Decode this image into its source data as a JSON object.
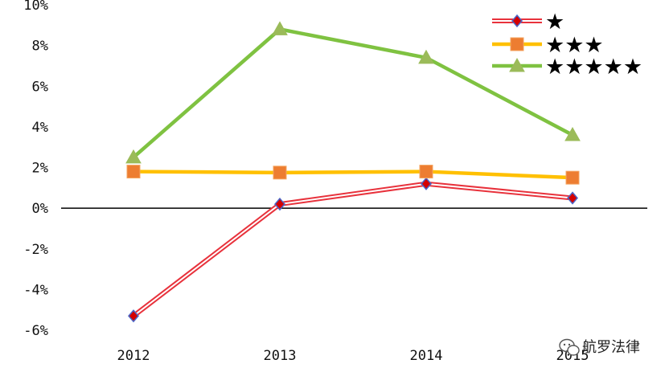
{
  "chart_data": {
    "type": "line",
    "categories": [
      "2012",
      "2013",
      "2014",
      "2015"
    ],
    "ylim": [
      -6,
      10
    ],
    "yticks": [
      10,
      8,
      6,
      4,
      2,
      0,
      -2,
      -4,
      -6
    ],
    "ytick_labels": [
      "10%",
      "8%",
      "6%",
      "4%",
      "2%",
      "0%",
      "-2%",
      "-4%",
      "-6%"
    ],
    "grid": false,
    "legend_position": "top-right",
    "series": [
      {
        "name": "★",
        "color": "#e8323c",
        "marker": "diamond",
        "marker_fill": "#d40000",
        "marker_stroke": "#4a66c8",
        "values": [
          -5.3,
          0.2,
          1.2,
          0.5
        ]
      },
      {
        "name": "★★★",
        "color": "#ffc000",
        "marker": "square",
        "marker_fill": "#ed7d31",
        "marker_stroke": "#f4a460",
        "values": [
          1.8,
          1.75,
          1.8,
          1.5
        ]
      },
      {
        "name": "★★★★★",
        "color": "#7fc241",
        "marker": "triangle",
        "marker_fill": "#9bbb59",
        "marker_stroke": "#9bbb59",
        "values": [
          2.5,
          8.8,
          7.4,
          3.6
        ]
      }
    ]
  },
  "watermark": {
    "text": "航罗法律",
    "icon": "wechat-icon"
  }
}
